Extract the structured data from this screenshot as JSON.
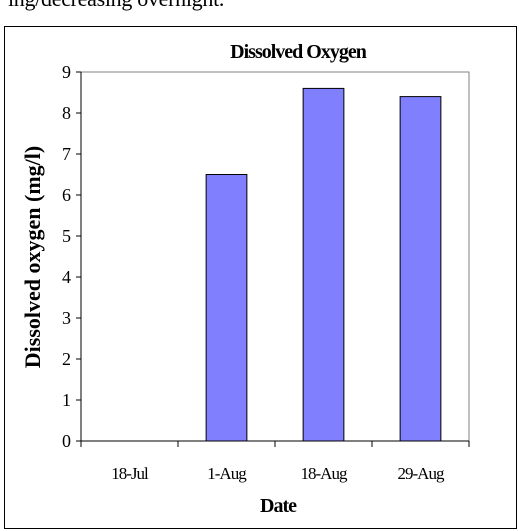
{
  "header_text": "ing/decreasing overnight.",
  "chart_data": {
    "type": "bar",
    "title": "Dissolved Oxygen",
    "xlabel": "Date",
    "ylabel": "Dissolved oxygen (mg/l)",
    "categories": [
      "18-Jul",
      "1-Aug",
      "18-Aug",
      "29-Aug"
    ],
    "values": [
      0,
      6.5,
      8.6,
      8.4
    ],
    "ylim": [
      0,
      9
    ],
    "yticks": [
      0,
      1,
      2,
      3,
      4,
      5,
      6,
      7,
      8,
      9
    ],
    "grid": false,
    "legend": "none",
    "bar_color": "#8080ff",
    "bar_edge_color": "#000000"
  }
}
